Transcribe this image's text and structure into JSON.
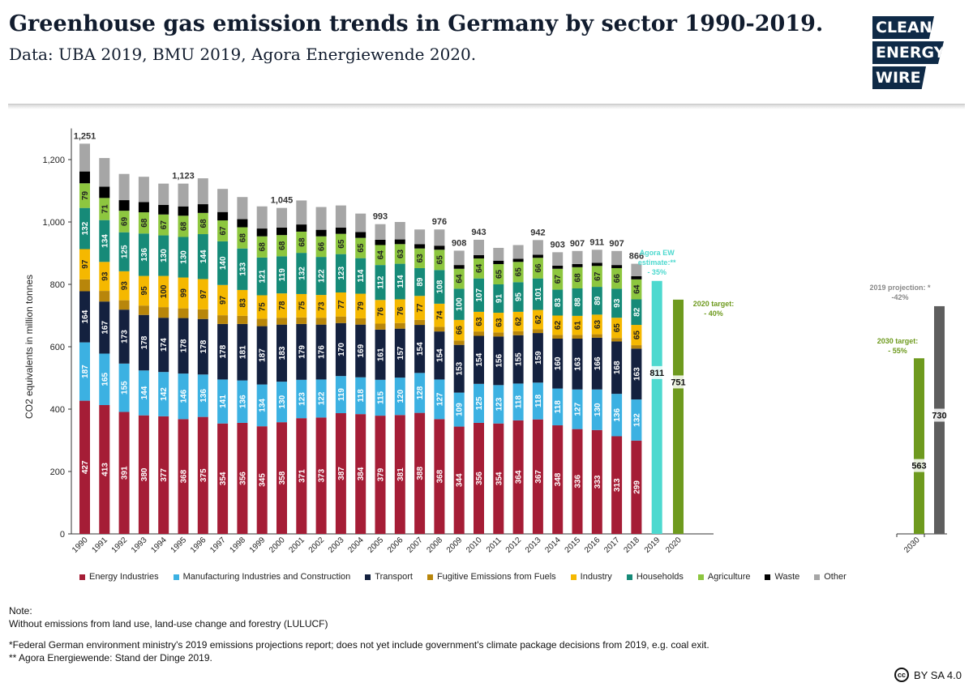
{
  "header": {
    "title": "Greenhouse gas emission trends in Germany by sector 1990-2019.",
    "subtitle": "Data: UBA 2019, BMU 2019, Agora Energiewende 2020."
  },
  "logo": {
    "line1": "CLEAN",
    "line2": "ENERGY",
    "line3": "WIRE"
  },
  "notes": {
    "heading": "Note:",
    "line1": "Without emissions from land use, land-use change and forestry (LULUCF)",
    "line2": "*Federal German environment ministry's 2019 emissions projections report; does not yet include government's climate package decisions from 2019, e.g. coal exit.",
    "line3": "** Agora Energiewende: Stand der Dinge 2019."
  },
  "license": {
    "cc": "cc",
    "text": "BY SA 4.0"
  },
  "colors": {
    "energy": "#a51d36",
    "manufacturing": "#3cb1e2",
    "transport": "#14213f",
    "fugitive": "#b8860b",
    "industry": "#f5b800",
    "households": "#168a78",
    "agriculture": "#8dc63f",
    "waste": "#000000",
    "other": "#a6a6a6",
    "agora": "#4dd9cf",
    "target": "#6e9a1e",
    "projection": "#5e5e5e"
  },
  "chart_data": {
    "type": "bar",
    "stacked": true,
    "title": "Greenhouse gas emission trends in Germany by sector 1990-2019.",
    "ylabel": "CO2 equivalents in million tonnes",
    "ylim": [
      0,
      1300
    ],
    "yticks": [
      0,
      200,
      400,
      600,
      800,
      "1,000",
      "1,200"
    ],
    "ytick_values": [
      0,
      200,
      400,
      600,
      800,
      1000,
      1200
    ],
    "grid": false,
    "legend_position": "bottom",
    "categories": [
      "1990",
      "1991",
      "1992",
      "1993",
      "1994",
      "1995",
      "1996",
      "1997",
      "1998",
      "1999",
      "2000",
      "2001",
      "2002",
      "2003",
      "2004",
      "2005",
      "2006",
      "2007",
      "2008",
      "2009",
      "2010",
      "2011",
      "2012",
      "2013",
      "2014",
      "2015",
      "2016",
      "2017",
      "2018"
    ],
    "series": [
      {
        "name": "Energy Industries",
        "key": "energy",
        "values": [
          427,
          413,
          391,
          380,
          377,
          368,
          375,
          354,
          356,
          345,
          358,
          371,
          373,
          387,
          384,
          379,
          381,
          388,
          368,
          344,
          356,
          354,
          364,
          367,
          348,
          336,
          333,
          313,
          299
        ]
      },
      {
        "name": "Manufacturing Industries and Construction",
        "key": "manufacturing",
        "values": [
          187,
          165,
          155,
          144,
          142,
          146,
          136,
          141,
          136,
          134,
          130,
          123,
          122,
          119,
          118,
          115,
          120,
          128,
          127,
          109,
          125,
          123,
          118,
          118,
          118,
          127,
          130,
          136,
          132
        ]
      },
      {
        "name": "Transport",
        "key": "transport",
        "values": [
          164,
          167,
          173,
          178,
          174,
          178,
          178,
          178,
          181,
          187,
          183,
          179,
          176,
          170,
          169,
          161,
          157,
          154,
          154,
          153,
          154,
          156,
          155,
          159,
          160,
          163,
          166,
          168,
          163
        ]
      },
      {
        "name": "Fugitive Emissions from Fuels",
        "key": "fugitive",
        "values": [
          38,
          34,
          30,
          30,
          34,
          31,
          31,
          28,
          26,
          24,
          22,
          21,
          22,
          21,
          20,
          19,
          18,
          16,
          15,
          14,
          14,
          13,
          13,
          12,
          12,
          12,
          11,
          11,
          11
        ]
      },
      {
        "name": "Industry",
        "key": "industry",
        "values": [
          97,
          93,
          93,
          95,
          100,
          99,
          97,
          97,
          83,
          75,
          78,
          75,
          73,
          77,
          79,
          76,
          76,
          77,
          74,
          66,
          63,
          63,
          62,
          62,
          62,
          61,
          63,
          65,
          65
        ]
      },
      {
        "name": "Households",
        "key": "households",
        "values": [
          132,
          134,
          125,
          136,
          130,
          130,
          144,
          140,
          133,
          121,
          119,
          132,
          122,
          123,
          114,
          112,
          114,
          89,
          108,
          100,
          107,
          91,
          95,
          101,
          83,
          88,
          89,
          93,
          82
        ]
      },
      {
        "name": "Agriculture",
        "key": "agriculture",
        "values": [
          79,
          71,
          69,
          68,
          67,
          68,
          68,
          67,
          68,
          68,
          68,
          68,
          66,
          65,
          65,
          64,
          63,
          63,
          65,
          64,
          64,
          65,
          65,
          66,
          67,
          68,
          67,
          66,
          64
        ]
      },
      {
        "name": "Waste",
        "key": "waste",
        "values": [
          38,
          36,
          34,
          33,
          31,
          30,
          28,
          27,
          26,
          25,
          24,
          23,
          21,
          20,
          19,
          17,
          15,
          14,
          13,
          12,
          11,
          11,
          10,
          10,
          10,
          10,
          10,
          10,
          10
        ]
      },
      {
        "name": "Other",
        "key": "other",
        "values": [
          89,
          92,
          84,
          81,
          68,
          73,
          83,
          74,
          71,
          71,
          63,
          77,
          73,
          71,
          59,
          50,
          56,
          47,
          52,
          46,
          49,
          41,
          44,
          47,
          43,
          42,
          42,
          45,
          40
        ]
      }
    ],
    "label_series": [
      "energy",
      "manufacturing",
      "transport",
      "industry",
      "households",
      "agriculture"
    ],
    "totals_labels": [
      {
        "year": "1990",
        "label": "1,251",
        "value": 1251
      },
      {
        "year": "1995",
        "label": "1,123",
        "value": 1123
      },
      {
        "year": "2000",
        "label": "1,045",
        "value": 1045
      },
      {
        "year": "2005",
        "label": "993",
        "value": 993
      },
      {
        "year": "2008",
        "label": "976",
        "value": 976
      },
      {
        "year": "2009",
        "label": "908",
        "value": 908
      },
      {
        "year": "2010",
        "label": "943",
        "value": 943
      },
      {
        "year": "2013",
        "label": "942",
        "value": 942
      },
      {
        "year": "2014",
        "label": "903",
        "value": 903
      },
      {
        "year": "2015",
        "label": "907",
        "value": 907
      },
      {
        "year": "2016",
        "label": "911",
        "value": 911
      },
      {
        "year": "2017",
        "label": "907",
        "value": 907
      },
      {
        "year": "2018",
        "label": "866",
        "value": 866
      }
    ],
    "extra_categories": [
      "2019",
      "2020",
      "2030"
    ],
    "targets": [
      {
        "year": "2019",
        "value": 811,
        "label": "811",
        "color_key": "agora",
        "annotation": [
          "Agora EW",
          "estimate:**",
          "- 35%"
        ]
      },
      {
        "year": "2020",
        "value": 751,
        "label": "751",
        "color_key": "target",
        "annotation": [
          "2020 target:",
          "- 40%"
        ]
      },
      {
        "year": "2030",
        "value": 563,
        "label": "563",
        "color_key": "target",
        "annotation": [
          "2030 target:",
          "- 55%"
        ]
      },
      {
        "year": "2030",
        "value": 730,
        "label": "730",
        "color_key": "projection",
        "annotation": [
          "2019 projection: *",
          "-42%"
        ]
      }
    ]
  }
}
